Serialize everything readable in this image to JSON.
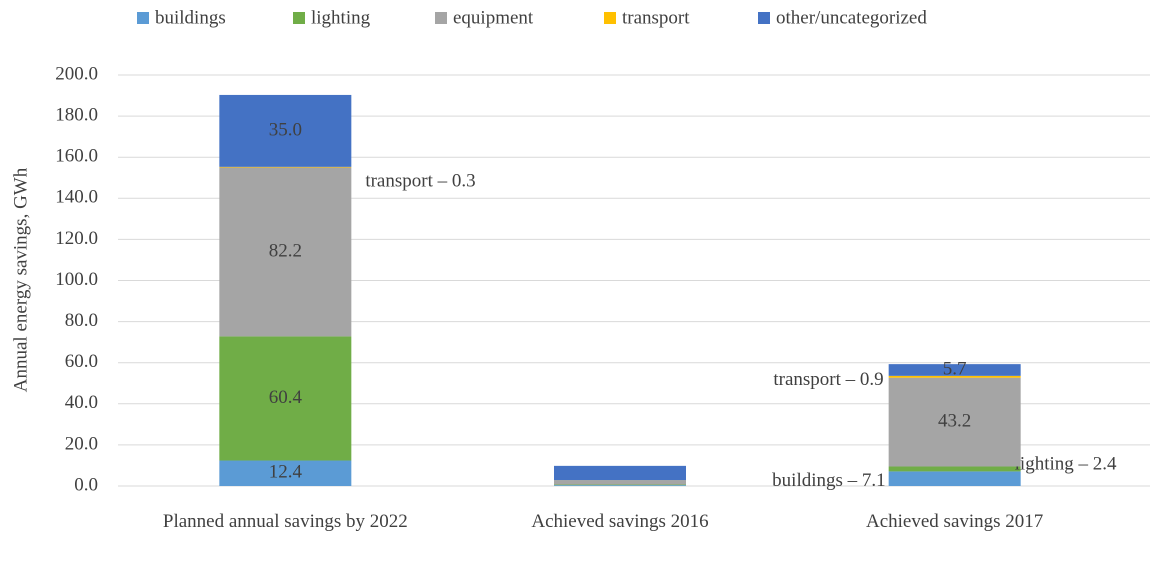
{
  "chart_data": {
    "type": "stacked_bar",
    "y_axis_label": "Annual energy savings, GWh",
    "categories": [
      "Planned annual savings by 2022",
      "Achieved savings 2016",
      "Achieved savings 2017"
    ],
    "series": [
      {
        "name": "buildings",
        "color": "#5b9bd5",
        "values": [
          12.4,
          0.4,
          7.1
        ],
        "value_labels": [
          "12.4",
          null,
          "buildings – 7.1"
        ]
      },
      {
        "name": "lighting",
        "color": "#70ad47",
        "values": [
          60.4,
          0.3,
          2.4
        ],
        "value_labels": [
          "60.4",
          null,
          "lighting – 2.4"
        ]
      },
      {
        "name": "equipment",
        "color": "#a5a5a5",
        "values": [
          82.2,
          2.0,
          43.2
        ],
        "value_labels": [
          "82.2",
          null,
          "43.2"
        ]
      },
      {
        "name": "transport",
        "color": "#ffc000",
        "values": [
          0.3,
          0.1,
          0.9
        ],
        "value_labels": [
          "transport – 0.3",
          null,
          "transport – 0.9"
        ]
      },
      {
        "name": "other/uncategorized",
        "color": "#4472c4",
        "values": [
          35,
          7.0,
          5.7
        ],
        "value_labels": [
          "35.0",
          null,
          "5.7"
        ]
      }
    ],
    "ylim": [
      0,
      200
    ],
    "yticks": [
      {
        "value": 0,
        "label": "0.0"
      },
      {
        "value": 20,
        "label": "20.0"
      },
      {
        "value": 40,
        "label": "40.0"
      },
      {
        "value": 60,
        "label": "60.0"
      },
      {
        "value": 80,
        "label": "80.0"
      },
      {
        "value": 100,
        "label": "100.0"
      },
      {
        "value": 120,
        "label": "120.0"
      },
      {
        "value": 140,
        "label": "140.0"
      },
      {
        "value": 160,
        "label": "160.0"
      },
      {
        "value": 180,
        "label": "180.0"
      },
      {
        "value": 200,
        "label": "200.0"
      }
    ],
    "grid": true,
    "legend": "top"
  }
}
